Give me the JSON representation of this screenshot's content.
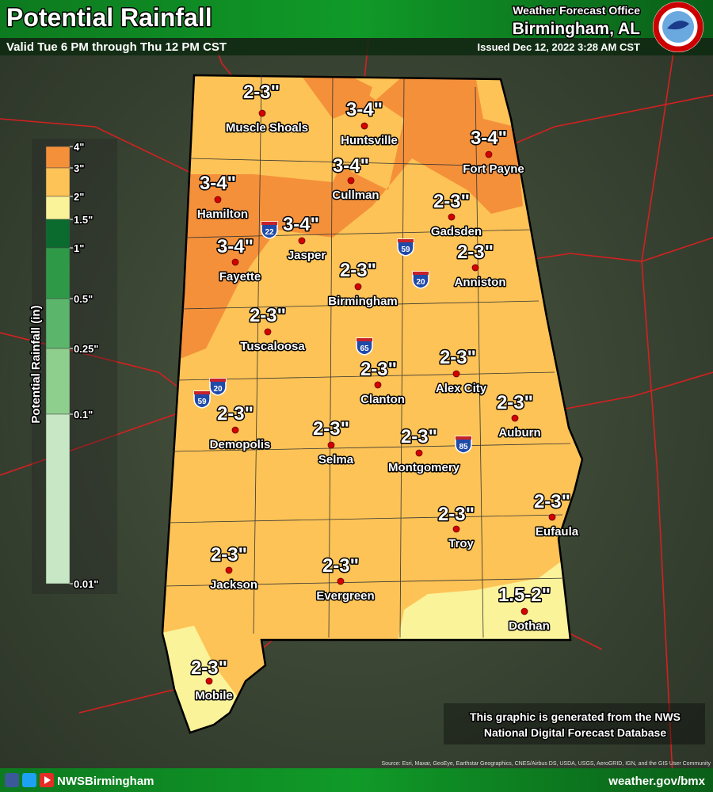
{
  "header": {
    "title": "Potential Rainfall",
    "subtitle": "Valid Tue 6 PM through Thu 12 PM CST",
    "office": "Weather Forecast Office",
    "location": "Birmingham, AL",
    "issued": "Issued Dec 12, 2022 3:28 AM CST"
  },
  "legend": {
    "title": "Potential Rainfall (in)",
    "ticks": [
      "4\"",
      "3\"",
      "2\"",
      "1.5\"",
      "1\"",
      "0.5\"",
      "0.25\"",
      "0.1\"",
      "0.01\""
    ],
    "colors": [
      "#f4903a",
      "#fdc356",
      "#fbf39a",
      "#0b6b2f",
      "#2e9a48",
      "#5bb56a",
      "#8fcf8e",
      "#c8e8c5"
    ]
  },
  "cities": [
    {
      "name": "Muscle Shoals",
      "amount": "2-3\""
    },
    {
      "name": "Huntsville",
      "amount": "3-4\""
    },
    {
      "name": "Fort Payne",
      "amount": "3-4\""
    },
    {
      "name": "Cullman",
      "amount": "3-4\""
    },
    {
      "name": "Hamilton",
      "amount": "3-4\""
    },
    {
      "name": "Gadsden",
      "amount": "2-3\""
    },
    {
      "name": "Jasper",
      "amount": "3-4\""
    },
    {
      "name": "Fayette",
      "amount": "3-4\""
    },
    {
      "name": "Anniston",
      "amount": "2-3\""
    },
    {
      "name": "Birmingham",
      "amount": "2-3\""
    },
    {
      "name": "Tuscaloosa",
      "amount": "2-3\""
    },
    {
      "name": "Alex City",
      "amount": "2-3\""
    },
    {
      "name": "Clanton",
      "amount": "2-3\""
    },
    {
      "name": "Auburn",
      "amount": "2-3\""
    },
    {
      "name": "Demopolis",
      "amount": "2-3\""
    },
    {
      "name": "Selma",
      "amount": "2-3\""
    },
    {
      "name": "Montgomery",
      "amount": "2-3\""
    },
    {
      "name": "Troy",
      "amount": "2-3\""
    },
    {
      "name": "Eufaula",
      "amount": "2-3\""
    },
    {
      "name": "Jackson",
      "amount": "2-3\""
    },
    {
      "name": "Evergreen",
      "amount": "2-3\""
    },
    {
      "name": "Dothan",
      "amount": "1.5-2\""
    },
    {
      "name": "Mobile",
      "amount": "2-3\""
    }
  ],
  "interstates": [
    "22",
    "59",
    "20",
    "65",
    "85",
    "20",
    "59"
  ],
  "note": {
    "line1": "This graphic is generated from the NWS",
    "line2": "National Digital Forecast Database"
  },
  "credit": "Source: Esri, Maxar, GeoEye, Earthstar Geographics, CNES/Airbus DS, USDA, USGS, AeroGRID, IGN, and the GIS User Community",
  "footer": {
    "handle": "NWSBirmingham",
    "url": "weather.gov/bmx"
  }
}
